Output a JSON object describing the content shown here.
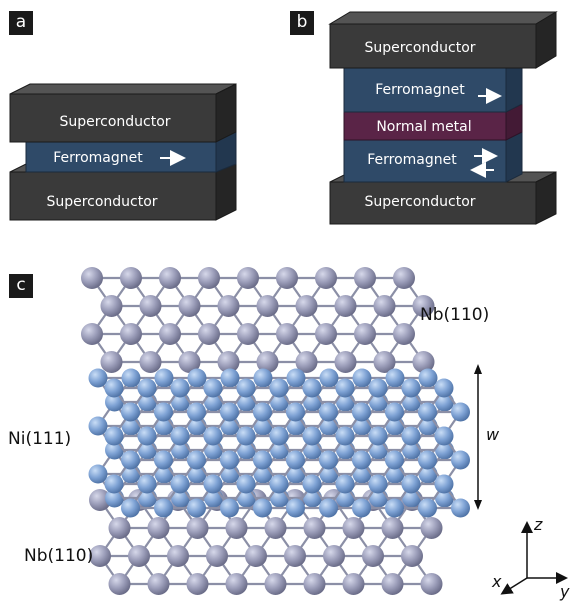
{
  "panels": {
    "a": {
      "tag": "a",
      "layers": [
        {
          "label": "Superconductor",
          "role": "top"
        },
        {
          "label": "Ferromagnet",
          "role": "middle"
        },
        {
          "label": "Superconductor",
          "role": "bottom"
        }
      ]
    },
    "b": {
      "tag": "b",
      "layers": [
        {
          "label": "Superconductor",
          "role": "top"
        },
        {
          "label": "Ferromagnet",
          "role": "ferro-1"
        },
        {
          "label": "Normal metal",
          "role": "normal"
        },
        {
          "label": "Ferromagnet",
          "role": "ferro-2"
        },
        {
          "label": "Superconductor",
          "role": "bottom"
        }
      ]
    },
    "c": {
      "tag": "c",
      "labels": {
        "top_lattice": "Nb(110)",
        "middle_lattice": "Ni(111)",
        "bottom_lattice": "Nb(110)",
        "thickness": "w",
        "axis_z": "z",
        "axis_x": "x",
        "axis_y": "y"
      }
    }
  },
  "colors": {
    "superconductor_front": "#3a3a3a",
    "superconductor_top": "#505050",
    "superconductor_side": "#262626",
    "ferromagnet": "#2f4a68",
    "ferromagnet_side": "#22374f",
    "normal_metal": "#5a2447",
    "normal_metal_side": "#431a35",
    "nb_atom": "#9a9cb8",
    "ni_atom": "#7ea2d4",
    "bond": "#8b8fa6"
  }
}
